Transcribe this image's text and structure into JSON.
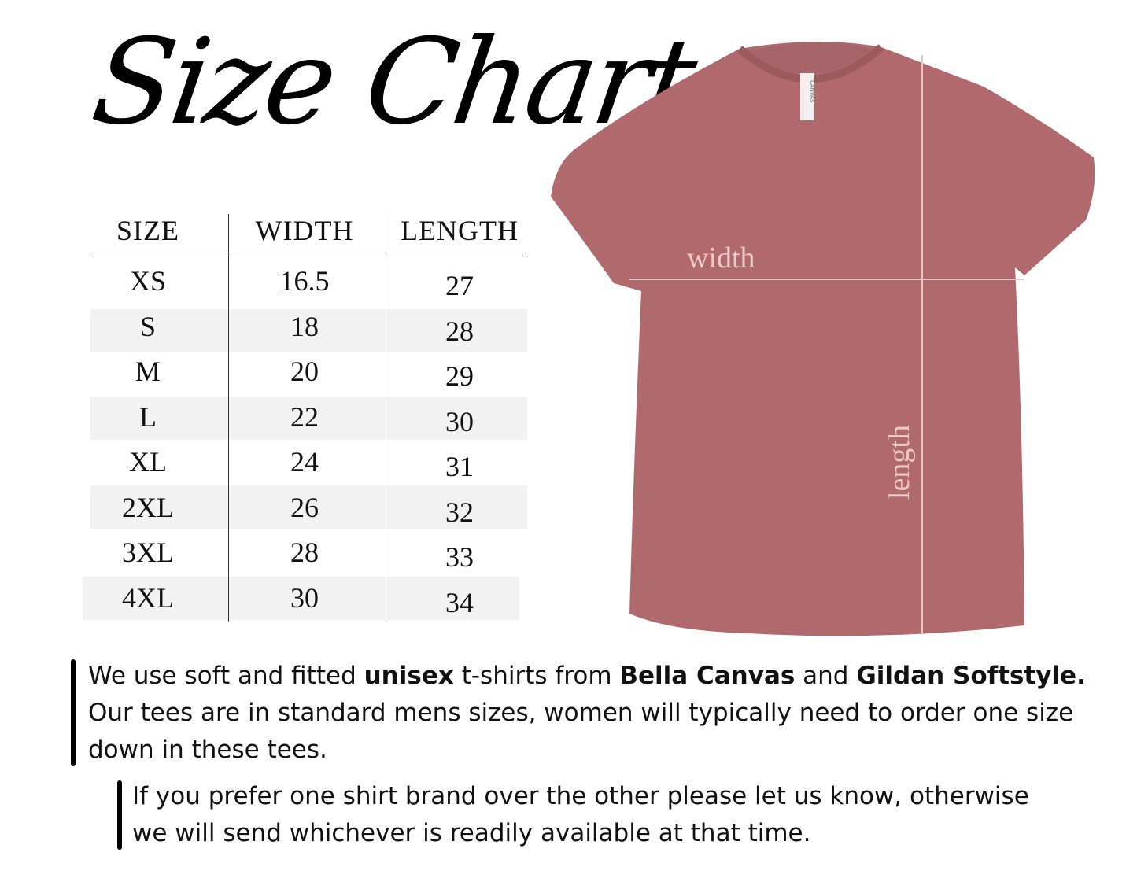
{
  "title": "Size Chart",
  "table": {
    "headers": [
      "SIZE",
      "WIDTH",
      "LENGTH"
    ],
    "rows": [
      {
        "size": "XS",
        "width": "16.5",
        "length": "27"
      },
      {
        "size": "S",
        "width": "18",
        "length": "28"
      },
      {
        "size": "M",
        "width": "20",
        "length": "29"
      },
      {
        "size": "L",
        "width": "22",
        "length": "30"
      },
      {
        "size": "XL",
        "width": "24",
        "length": "31"
      },
      {
        "size": "2XL",
        "width": "26",
        "length": "32"
      },
      {
        "size": "3XL",
        "width": "28",
        "length": "33"
      },
      {
        "size": "4XL",
        "width": "30",
        "length": "34"
      }
    ]
  },
  "shirt": {
    "color": "#b06a6e",
    "width_label": "width",
    "length_label": "length",
    "tag_text": "CANVAS"
  },
  "notes": {
    "p1_a": "We use soft and fitted ",
    "p1_b": "unisex",
    "p1_c": " t-shirts from ",
    "p1_d": "Bella Canvas",
    "p1_e": " and ",
    "p1_f": "Gildan Softstyle.",
    "p1_line2": "Our tees are in standard mens sizes, women will typically need to order one size",
    "p1_line3": "down in these tees.",
    "p2_line1": "If you prefer one shirt brand over the other please let us know, otherwise",
    "p2_line2": "we will send whichever is readily available at that time."
  }
}
